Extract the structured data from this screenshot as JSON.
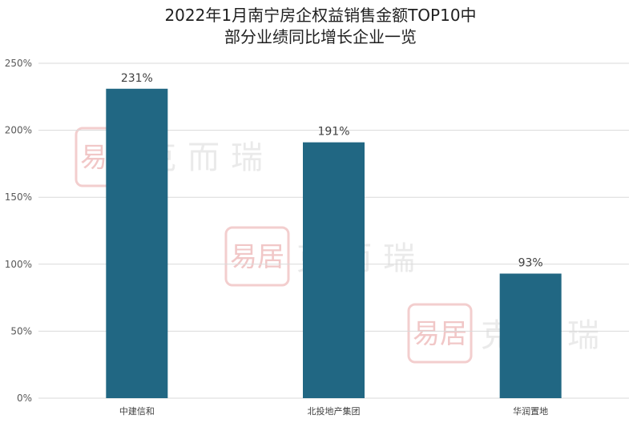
{
  "chart_data": {
    "type": "bar",
    "title_lines": [
      "2022年1月南宁房企权益销售金额TOP10中",
      "部分业绩同比增长企业一览"
    ],
    "categories": [
      "中建信和",
      "北投地产集团",
      "华润置地"
    ],
    "values": [
      231,
      191,
      93
    ],
    "data_labels": [
      "231%",
      "191%",
      "93%"
    ],
    "ylim": [
      0,
      250
    ],
    "yticks": [
      0,
      50,
      100,
      150,
      200,
      250
    ],
    "ytick_labels": [
      "0%",
      "50%",
      "100%",
      "150%",
      "200%",
      "250%"
    ],
    "grid": true,
    "legend": "none",
    "bar_color": "#216783"
  },
  "watermark": {
    "text": "克而瑞",
    "seal_text": "易居"
  }
}
